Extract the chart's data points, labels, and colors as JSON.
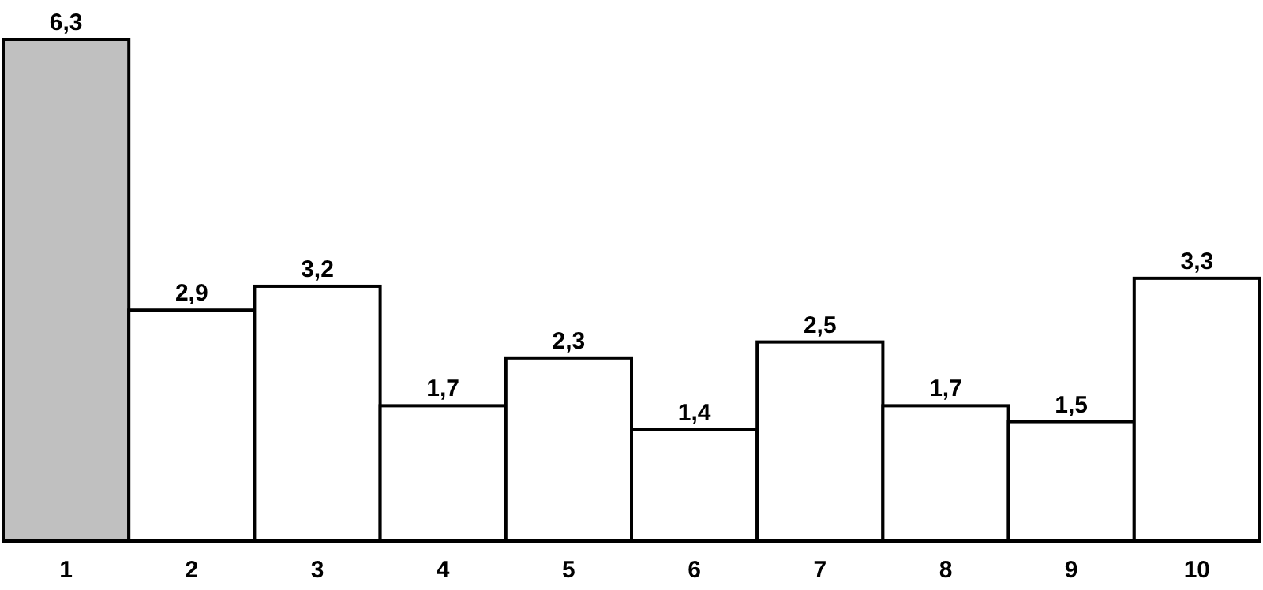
{
  "chart_data": {
    "type": "bar",
    "categories": [
      "1",
      "2",
      "3",
      "4",
      "5",
      "6",
      "7",
      "8",
      "9",
      "10"
    ],
    "values": [
      6.3,
      2.9,
      3.2,
      1.7,
      2.3,
      1.4,
      2.5,
      1.7,
      1.5,
      3.3
    ],
    "value_labels": [
      "6,3",
      "2,9",
      "3,2",
      "1,7",
      "2,3",
      "1,4",
      "2,5",
      "1,7",
      "1,5",
      "3,3"
    ],
    "colors": [
      "#c0c0c0",
      "#ffffff",
      "#ffffff",
      "#ffffff",
      "#ffffff",
      "#ffffff",
      "#ffffff",
      "#ffffff",
      "#ffffff",
      "#ffffff"
    ]
  }
}
